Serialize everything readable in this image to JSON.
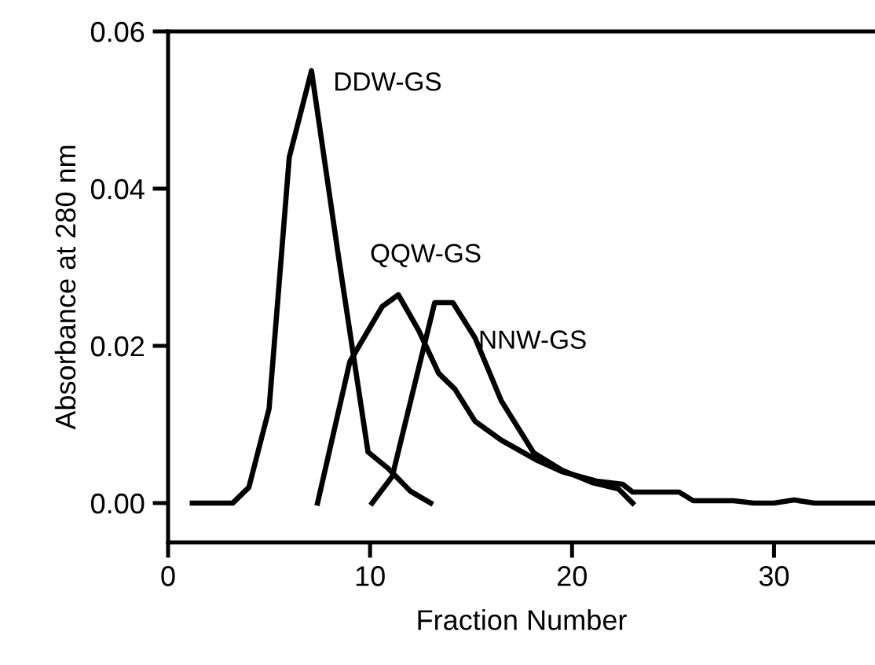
{
  "chart_data": {
    "type": "line",
    "xlabel": "Fraction Number",
    "ylabel": "Absorbance at 280 nm",
    "series": [
      {
        "name": "DDW-GS",
        "color": "#000000",
        "x": [
          1.2,
          3.2,
          4,
          5,
          6,
          7.1,
          8.4,
          9.9,
          10.9,
          12,
          13
        ],
        "values": [
          0,
          0,
          0.002,
          0.012,
          0.044,
          0.055,
          0.032,
          0.0065,
          0.0044,
          0.0015,
          0
        ]
      },
      {
        "name": "QQW-GS",
        "color": "#000000",
        "x": [
          7.4,
          9,
          10.6,
          11.4,
          12.4,
          13.4,
          14.2,
          15.2,
          16.5,
          18.3,
          19.5,
          21.2,
          22.5,
          23,
          25.3,
          26,
          27,
          28,
          29,
          30,
          31,
          32,
          35
        ],
        "values": [
          0,
          0.018,
          0.025,
          0.0265,
          0.022,
          0.0165,
          0.0145,
          0.0104,
          0.008,
          0.0054,
          0.004,
          0.0028,
          0.0024,
          0.0014,
          0.0014,
          0.0003,
          0.0003,
          0.0003,
          0,
          0,
          0.0004,
          0,
          0
        ]
      },
      {
        "name": "NNW-GS",
        "color": "#000000",
        "x": [
          10.1,
          11.1,
          12.2,
          13.2,
          14.1,
          15.2,
          16.5,
          18.1,
          19.5,
          21,
          22.3,
          23
        ],
        "values": [
          0,
          0.0034,
          0.015,
          0.0255,
          0.0255,
          0.021,
          0.013,
          0.0064,
          0.0042,
          0.0026,
          0.0018,
          0
        ]
      }
    ],
    "xlim": [
      0,
      35
    ],
    "ylim": [
      -0.005,
      0.06
    ],
    "xticks": [
      0,
      10,
      20,
      30
    ],
    "yticks": [
      {
        "value": 0,
        "label": "0.00"
      },
      {
        "value": 0.02,
        "label": "0.02"
      },
      {
        "value": 0.04,
        "label": "0.04"
      },
      {
        "value": 0.06,
        "label": "0.06"
      }
    ],
    "grid": false,
    "legend": false,
    "marker": "none",
    "line_style": "solid"
  }
}
